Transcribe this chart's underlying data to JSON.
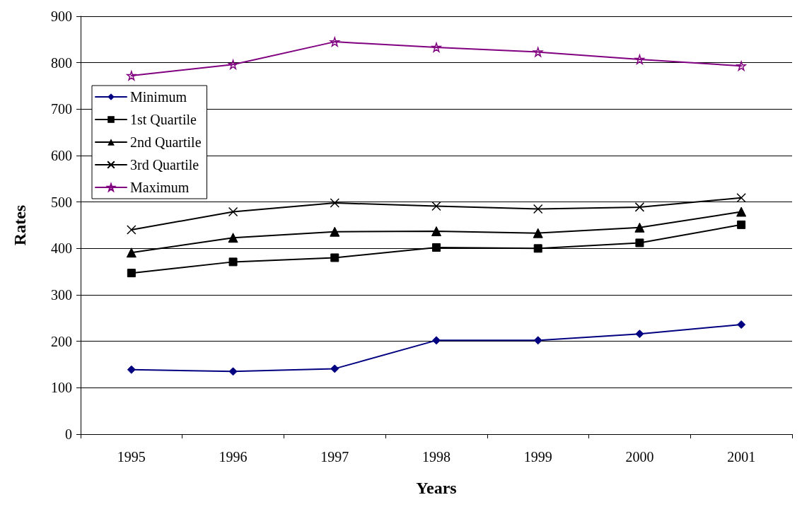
{
  "chart_data": {
    "type": "line",
    "xlabel": "Years",
    "ylabel": "Rates",
    "categories": [
      "1995",
      "1996",
      "1997",
      "1998",
      "1999",
      "2000",
      "2001"
    ],
    "ylim": [
      0,
      900
    ],
    "yticks": [
      0,
      100,
      200,
      300,
      400,
      500,
      600,
      700,
      800,
      900
    ],
    "grid": "y",
    "legend": "top left",
    "line_style": "solid",
    "series": [
      {
        "name": "Minimum",
        "color": "#000080",
        "marker": "diamond",
        "values": [
          139,
          135,
          141,
          202,
          202,
          216,
          236
        ]
      },
      {
        "name": "1st Quartile",
        "color": "#000000",
        "marker": "square",
        "values": [
          347,
          371,
          380,
          402,
          400,
          412,
          451
        ]
      },
      {
        "name": "2nd Quartile",
        "color": "#000000",
        "marker": "triangle",
        "values": [
          391,
          423,
          436,
          437,
          433,
          445,
          479
        ]
      },
      {
        "name": "3rd Quartile",
        "color": "#000000",
        "marker": "cross",
        "values": [
          440,
          479,
          498,
          491,
          485,
          489,
          509
        ]
      },
      {
        "name": "Maximum",
        "color": "#800080",
        "marker": "star",
        "values": [
          772,
          796,
          845,
          833,
          823,
          807,
          793
        ]
      }
    ]
  }
}
